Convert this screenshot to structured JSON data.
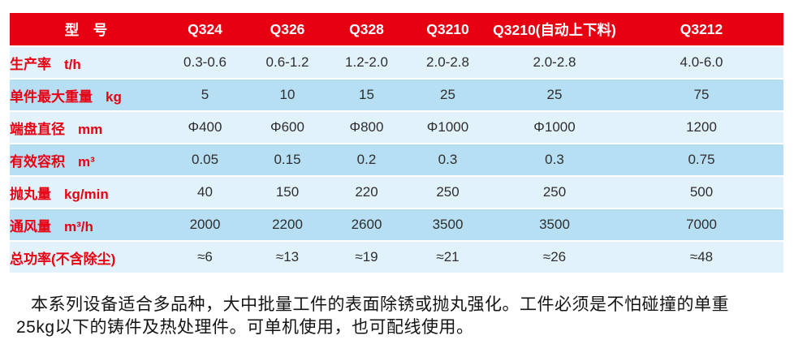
{
  "table": {
    "header": {
      "label": "型　号",
      "models": [
        "Q324",
        "Q326",
        "Q328",
        "Q3210",
        "Q3210(自动上下料)",
        "Q3212"
      ]
    },
    "rows": [
      {
        "label": "生产率",
        "unit": "t/h",
        "values": [
          "0.3-0.6",
          "0.6-1.2",
          "1.2-2.0",
          "2.0-2.8",
          "2.0-2.8",
          "4.0-6.0"
        ]
      },
      {
        "label": "单件最大重量",
        "unit": "kg",
        "values": [
          "5",
          "10",
          "15",
          "25",
          "25",
          "75"
        ]
      },
      {
        "label": "端盘直径",
        "unit": "mm",
        "values": [
          "Φ400",
          "Φ600",
          "Φ800",
          "Φ1000",
          "Φ1000",
          "1200"
        ]
      },
      {
        "label": "有效容积",
        "unit": "m³",
        "values": [
          "0.05",
          "0.15",
          "0.2",
          "0.3",
          "0.3",
          "0.75"
        ]
      },
      {
        "label": "抛丸量",
        "unit": "kg/min",
        "values": [
          "40",
          "150",
          "220",
          "250",
          "250",
          "500"
        ]
      },
      {
        "label": "通风量",
        "unit": "m³/h",
        "values": [
          "2000",
          "2200",
          "2600",
          "3500",
          "3500",
          "7000"
        ]
      },
      {
        "label": "总功率(不含除尘)",
        "unit": "",
        "values": [
          "≈6",
          "≈13",
          "≈19",
          "≈21",
          "≈26",
          "≈48"
        ]
      }
    ]
  },
  "description": {
    "lines": [
      "本系列设备适合多品种，大中批量工件的表面除锈或抛丸强化。工件必须是不怕碰撞的单重",
      "25kg以下的铸件及热处理件。可单机使用，也可配线使用。"
    ]
  },
  "colors": {
    "header_red": "#e60012",
    "row_light": "#e2f2fb",
    "row_dark": "#b7dff4",
    "value_text": "#2e2e2e",
    "header_text": "#ffffff"
  }
}
